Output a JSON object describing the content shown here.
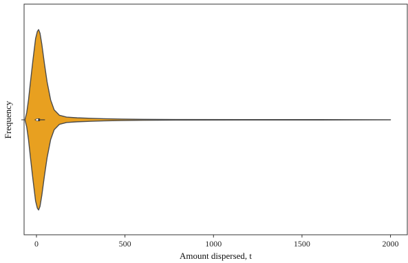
{
  "chart_data": {
    "type": "violin",
    "title": "",
    "xlabel": "Amount dispersed, t",
    "ylabel": "Frequency",
    "xlim": [
      -70,
      2095
    ],
    "xticks": [
      0,
      500,
      1000,
      1500,
      2000
    ],
    "xtick_labels": [
      "0",
      "500",
      "1000",
      "1500",
      "2000"
    ],
    "grid": false,
    "legend": "none",
    "colors": {
      "violin_fill": "#E8A020",
      "violin_edge": "#4a4a4a",
      "inner_box": "#3a3a3a",
      "axes": "#333333"
    },
    "density_profile": {
      "x": [
        -65,
        -55,
        -45,
        -35,
        -20,
        -5,
        5,
        12,
        20,
        30,
        45,
        60,
        80,
        100,
        130,
        170,
        230,
        300,
        380,
        480,
        600,
        800,
        1200,
        1600,
        2000
      ],
      "half_width": [
        0.0,
        0.08,
        0.22,
        0.4,
        0.66,
        0.9,
        0.98,
        1.0,
        0.96,
        0.84,
        0.62,
        0.42,
        0.22,
        0.11,
        0.05,
        0.03,
        0.022,
        0.017,
        0.012,
        0.008,
        0.005,
        0.003,
        0.0025,
        0.0022,
        0.0
      ]
    },
    "box_summary": {
      "q1": -2,
      "median": 4,
      "q3": 20,
      "whisker_low": -10,
      "whisker_high": 48
    }
  }
}
